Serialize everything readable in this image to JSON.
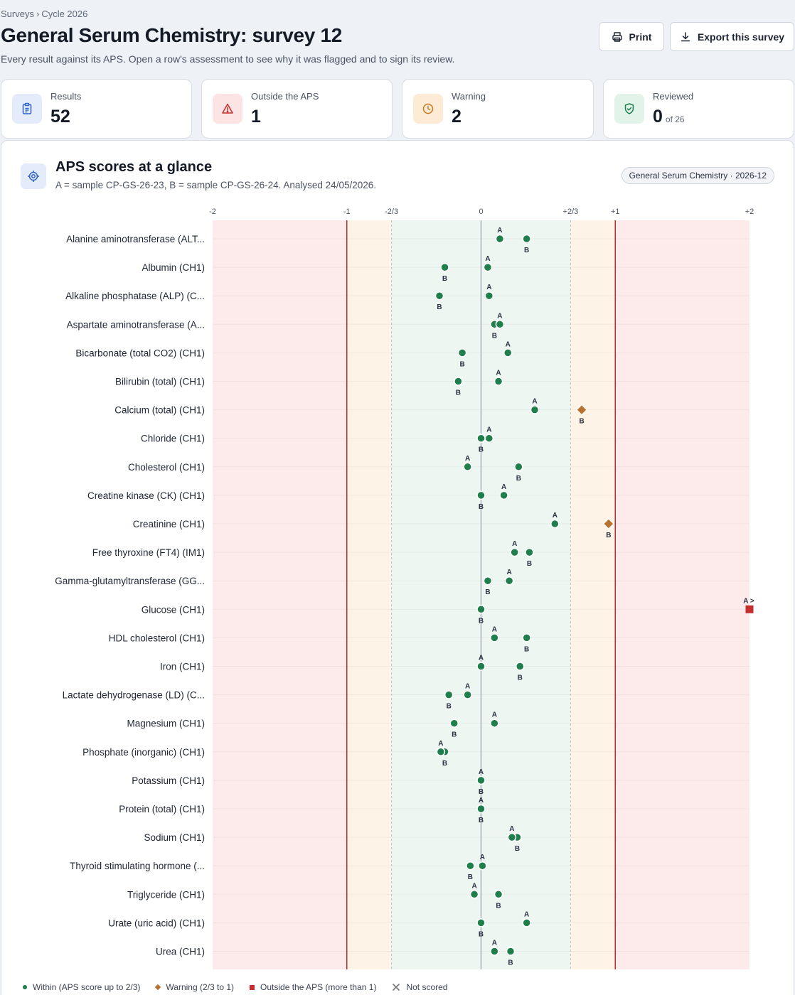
{
  "breadcrumb": {
    "root": "Surveys",
    "separator": "›",
    "current": "Cycle 2026"
  },
  "page": {
    "title": "General Serum Chemistry: survey 12",
    "subtitle": "Every result against its APS. Open a row's assessment to see why it was flagged and to sign its review."
  },
  "actions": {
    "print_label": "Print",
    "export_label": "Export this survey"
  },
  "stats": [
    {
      "label": "Results",
      "value": "52",
      "icon": "clipboard-icon"
    },
    {
      "label": "Outside the APS",
      "value": "1",
      "icon": "warning-triangle-icon"
    },
    {
      "label": "Warning",
      "value": "2",
      "icon": "clock-icon"
    },
    {
      "label": "Reviewed",
      "value": "0",
      "suffix": "of 26",
      "icon": "shield-check-icon"
    }
  ],
  "panel": {
    "title": "APS scores at a glance",
    "subtitle": "A = sample CP-GS-26-23, B = sample CP-GS-26-24. Analysed 24/05/2026.",
    "badge": "General Serum Chemistry · 2026-12"
  },
  "colors": {
    "within": "#1e7f4c",
    "warning": "#b8712e",
    "outside": "#c62f2f",
    "zone_within": "#eef6f1",
    "zone_warning": "#fdf3e6",
    "zone_outside": "#fcebea",
    "limit_line": "#b33131"
  },
  "legend": [
    {
      "label": "Within (APS score up to 2/3)",
      "marker": "circle"
    },
    {
      "label": "Warning (2/3 to 1)",
      "marker": "diamond"
    },
    {
      "label": "Outside the APS (more than 1)",
      "marker": "square"
    },
    {
      "label": "Not scored",
      "marker": "x"
    }
  ],
  "chart_data": {
    "type": "scatter",
    "x_range": [
      -2,
      2
    ],
    "x_ticks": [
      {
        "value": -2,
        "label": "-2"
      },
      {
        "value": -1,
        "label": "-1"
      },
      {
        "value": -0.667,
        "label": "-2/3"
      },
      {
        "value": 0,
        "label": "0"
      },
      {
        "value": 0.667,
        "label": "+2/3"
      },
      {
        "value": 1,
        "label": "+1"
      },
      {
        "value": 2,
        "label": "+2"
      }
    ],
    "zones": [
      {
        "from": -2,
        "to": -1,
        "status": "outside"
      },
      {
        "from": -1,
        "to": -0.667,
        "status": "warning"
      },
      {
        "from": -0.667,
        "to": 0.667,
        "status": "within"
      },
      {
        "from": 0.667,
        "to": 1,
        "status": "warning"
      },
      {
        "from": 1,
        "to": 2,
        "status": "outside"
      }
    ],
    "series": [
      {
        "name": "A"
      },
      {
        "name": "B"
      }
    ],
    "overflow_marker": ">",
    "rows": [
      {
        "analyte": "Alanine aminotransferase (ALT...",
        "A": 0.14,
        "B": 0.34,
        "statusA": "within",
        "statusB": "within"
      },
      {
        "analyte": "Albumin (CH1)",
        "A": 0.05,
        "B": -0.27,
        "statusA": "within",
        "statusB": "within"
      },
      {
        "analyte": "Alkaline phosphatase (ALP) (C...",
        "A": 0.06,
        "B": -0.31,
        "statusA": "within",
        "statusB": "within"
      },
      {
        "analyte": "Aspartate aminotransferase (A...",
        "A": 0.14,
        "B": 0.1,
        "statusA": "within",
        "statusB": "within"
      },
      {
        "analyte": "Bicarbonate (total CO2) (CH1)",
        "A": 0.2,
        "B": -0.14,
        "statusA": "within",
        "statusB": "within"
      },
      {
        "analyte": "Bilirubin (total) (CH1)",
        "A": 0.13,
        "B": -0.17,
        "statusA": "within",
        "statusB": "within"
      },
      {
        "analyte": "Calcium (total) (CH1)",
        "A": 0.4,
        "B": 0.75,
        "statusA": "within",
        "statusB": "warning"
      },
      {
        "analyte": "Chloride (CH1)",
        "A": 0.06,
        "B": 0.0,
        "statusA": "within",
        "statusB": "within"
      },
      {
        "analyte": "Cholesterol (CH1)",
        "A": -0.1,
        "B": 0.28,
        "statusA": "within",
        "statusB": "within"
      },
      {
        "analyte": "Creatine kinase (CK) (CH1)",
        "A": 0.17,
        "B": 0.0,
        "statusA": "within",
        "statusB": "within"
      },
      {
        "analyte": "Creatinine (CH1)",
        "A": 0.55,
        "B": 0.95,
        "statusA": "within",
        "statusB": "warning"
      },
      {
        "analyte": "Free thyroxine (FT4) (IM1)",
        "A": 0.25,
        "B": 0.36,
        "statusA": "within",
        "statusB": "within"
      },
      {
        "analyte": "Gamma-glutamyltransferase (GG...",
        "A": 0.21,
        "B": 0.05,
        "statusA": "within",
        "statusB": "within"
      },
      {
        "analyte": "Glucose (CH1)",
        "A": 2.0,
        "B": 0.0,
        "statusA": "outside",
        "statusB": "within",
        "overflowA": true
      },
      {
        "analyte": "HDL cholesterol (CH1)",
        "A": 0.1,
        "B": 0.34,
        "statusA": "within",
        "statusB": "within"
      },
      {
        "analyte": "Iron (CH1)",
        "A": 0.0,
        "B": 0.29,
        "statusA": "within",
        "statusB": "within"
      },
      {
        "analyte": "Lactate dehydrogenase (LD) (C...",
        "A": -0.1,
        "B": -0.24,
        "statusA": "within",
        "statusB": "within"
      },
      {
        "analyte": "Magnesium (CH1)",
        "A": 0.1,
        "B": -0.2,
        "statusA": "within",
        "statusB": "within"
      },
      {
        "analyte": "Phosphate (inorganic) (CH1)",
        "A": -0.3,
        "B": -0.27,
        "statusA": "within",
        "statusB": "within"
      },
      {
        "analyte": "Potassium (CH1)",
        "A": 0.0,
        "B": 0.0,
        "statusA": "within",
        "statusB": "within"
      },
      {
        "analyte": "Protein (total) (CH1)",
        "A": 0.0,
        "B": 0.0,
        "statusA": "within",
        "statusB": "within"
      },
      {
        "analyte": "Sodium (CH1)",
        "A": 0.23,
        "B": 0.27,
        "statusA": "within",
        "statusB": "within"
      },
      {
        "analyte": "Thyroid stimulating hormone (...",
        "A": 0.01,
        "B": -0.08,
        "statusA": "within",
        "statusB": "within"
      },
      {
        "analyte": "Triglyceride (CH1)",
        "A": -0.05,
        "B": 0.13,
        "statusA": "within",
        "statusB": "within"
      },
      {
        "analyte": "Urate (uric acid) (CH1)",
        "A": 0.34,
        "B": 0.0,
        "statusA": "within",
        "statusB": "within"
      },
      {
        "analyte": "Urea (CH1)",
        "A": 0.1,
        "B": 0.22,
        "statusA": "within",
        "statusB": "within"
      }
    ]
  }
}
